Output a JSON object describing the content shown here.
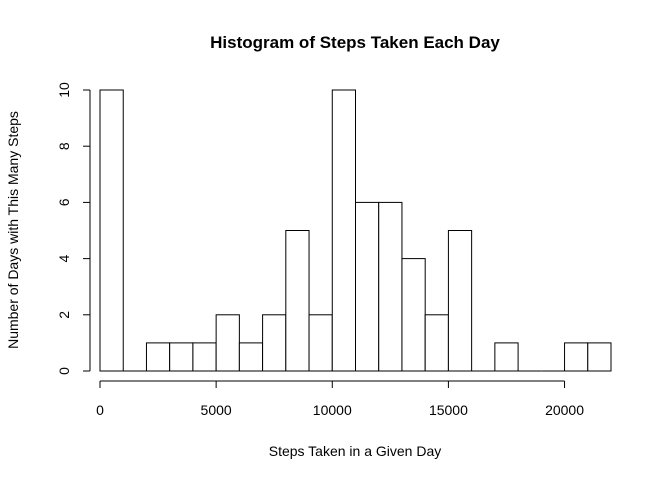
{
  "chart_data": {
    "type": "bar",
    "title": "Histogram of Steps Taken Each Day",
    "xlabel": "Steps Taken in a Given Day",
    "ylabel": "Number of Days with This Many Steps",
    "bin_width": 1000,
    "bins": [
      {
        "start": 0,
        "end": 1000,
        "count": 10
      },
      {
        "start": 1000,
        "end": 2000,
        "count": 0
      },
      {
        "start": 2000,
        "end": 3000,
        "count": 1
      },
      {
        "start": 3000,
        "end": 4000,
        "count": 1
      },
      {
        "start": 4000,
        "end": 5000,
        "count": 1
      },
      {
        "start": 5000,
        "end": 6000,
        "count": 2
      },
      {
        "start": 6000,
        "end": 7000,
        "count": 1
      },
      {
        "start": 7000,
        "end": 8000,
        "count": 2
      },
      {
        "start": 8000,
        "end": 9000,
        "count": 5
      },
      {
        "start": 9000,
        "end": 10000,
        "count": 2
      },
      {
        "start": 10000,
        "end": 11000,
        "count": 10
      },
      {
        "start": 11000,
        "end": 12000,
        "count": 6
      },
      {
        "start": 12000,
        "end": 13000,
        "count": 6
      },
      {
        "start": 13000,
        "end": 14000,
        "count": 4
      },
      {
        "start": 14000,
        "end": 15000,
        "count": 2
      },
      {
        "start": 15000,
        "end": 16000,
        "count": 5
      },
      {
        "start": 16000,
        "end": 17000,
        "count": 0
      },
      {
        "start": 17000,
        "end": 18000,
        "count": 1
      },
      {
        "start": 18000,
        "end": 19000,
        "count": 0
      },
      {
        "start": 19000,
        "end": 20000,
        "count": 0
      },
      {
        "start": 20000,
        "end": 21000,
        "count": 1
      },
      {
        "start": 21000,
        "end": 22000,
        "count": 1
      }
    ],
    "xlim": [
      0,
      22000
    ],
    "ylim": [
      0,
      10
    ],
    "x_ticks": [
      0,
      5000,
      10000,
      15000,
      20000
    ],
    "y_ticks": [
      0,
      2,
      4,
      6,
      8,
      10
    ],
    "grid": false,
    "colors": {
      "bar_fill": "#ffffff",
      "bar_stroke": "#000000"
    }
  }
}
